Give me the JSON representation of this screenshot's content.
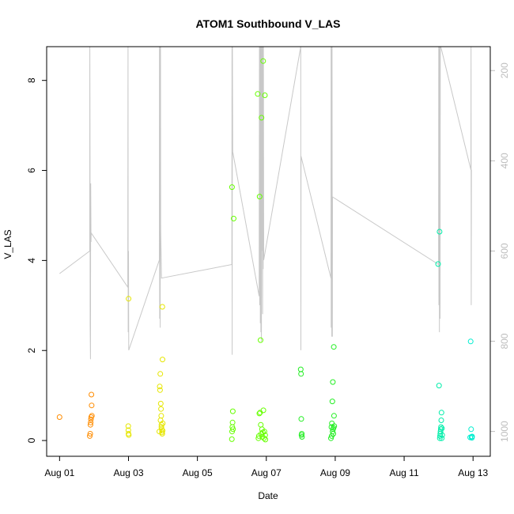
{
  "chart_data": {
    "type": "scatter",
    "title": "ATOM1 Southbound V_LAS",
    "xlabel": "Date",
    "ylabel": "V_LAS",
    "y2label": "",
    "xlim": [
      "2019-07-31T15:00",
      "2019-08-13T12:00"
    ],
    "ylim": [
      -0.35,
      8.75
    ],
    "y2lim": [
      1055,
      147
    ],
    "y2_reversed": true,
    "x_ticks": [
      {
        "date": "2019-08-01",
        "label": "Aug 01"
      },
      {
        "date": "2019-08-03",
        "label": "Aug 03"
      },
      {
        "date": "2019-08-05",
        "label": "Aug 05"
      },
      {
        "date": "2019-08-07",
        "label": "Aug 07"
      },
      {
        "date": "2019-08-09",
        "label": "Aug 09"
      },
      {
        "date": "2019-08-11",
        "label": "Aug 11"
      },
      {
        "date": "2019-08-13",
        "label": "Aug 13"
      }
    ],
    "y_ticks": [
      0,
      2,
      4,
      6,
      8
    ],
    "y2_ticks": [
      200,
      400,
      600,
      800,
      1000
    ],
    "grid": false,
    "legend": "none",
    "series": [
      {
        "color": "#FF8C00",
        "points": [
          [
            "2019-08-01T00:00",
            0.52
          ],
          [
            "2019-08-01T21:00",
            0.1
          ],
          [
            "2019-08-01T21:20",
            0.15
          ],
          [
            "2019-08-01T21:30",
            0.35
          ],
          [
            "2019-08-01T21:50",
            0.47
          ],
          [
            "2019-08-01T22:00",
            0.52
          ],
          [
            "2019-08-01T22:10",
            1.02
          ],
          [
            "2019-08-01T22:20",
            0.78
          ],
          [
            "2019-08-01T22:30",
            0.55
          ],
          [
            "2019-08-01T21:40",
            0.4
          ]
        ]
      },
      {
        "color": "#E6E600",
        "points": [
          [
            "2019-08-02T23:50",
            0.32
          ],
          [
            "2019-08-02T23:55",
            0.23
          ],
          [
            "2019-08-03T00:00",
            0.15
          ],
          [
            "2019-08-03T00:10",
            0.12
          ],
          [
            "2019-08-03T00:05",
            3.15
          ],
          [
            "2019-08-03T21:30",
            0.2
          ],
          [
            "2019-08-03T21:45",
            1.2
          ],
          [
            "2019-08-03T22:00",
            1.12
          ],
          [
            "2019-08-03T22:10",
            1.48
          ],
          [
            "2019-08-03T22:20",
            0.45
          ],
          [
            "2019-08-03T22:30",
            0.82
          ],
          [
            "2019-08-03T22:40",
            0.7
          ],
          [
            "2019-08-03T22:50",
            0.55
          ],
          [
            "2019-08-03T23:00",
            0.35
          ],
          [
            "2019-08-03T23:10",
            0.25
          ],
          [
            "2019-08-03T23:20",
            0.18
          ],
          [
            "2019-08-03T23:30",
            0.15
          ],
          [
            "2019-08-03T23:40",
            1.8
          ],
          [
            "2019-08-03T23:35",
            2.97
          ],
          [
            "2019-08-03T23:45",
            0.22
          ],
          [
            "2019-08-03T23:50",
            0.38
          ],
          [
            "2019-08-03T22:55",
            0.3
          ]
        ]
      },
      {
        "color": "#66FF00",
        "points": [
          [
            "2019-08-06T00:00",
            0.03
          ],
          [
            "2019-08-06T00:10",
            0.2
          ],
          [
            "2019-08-06T00:20",
            0.3
          ],
          [
            "2019-08-06T00:30",
            0.4
          ],
          [
            "2019-08-06T00:40",
            0.65
          ],
          [
            "2019-08-06T00:50",
            0.25
          ],
          [
            "2019-08-06T00:05",
            5.63
          ],
          [
            "2019-08-06T01:15",
            4.93
          ],
          [
            "2019-08-06T18:00",
            7.7
          ],
          [
            "2019-08-06T19:20",
            5.42
          ],
          [
            "2019-08-06T20:40",
            7.17
          ],
          [
            "2019-08-06T21:50",
            8.43
          ],
          [
            "2019-08-06T23:00",
            7.67
          ],
          [
            "2019-08-06T20:00",
            2.23
          ],
          [
            "2019-08-06T18:30",
            0.05
          ],
          [
            "2019-08-06T18:50",
            0.1
          ],
          [
            "2019-08-06T19:10",
            0.6
          ],
          [
            "2019-08-06T19:40",
            0.62
          ],
          [
            "2019-08-06T20:10",
            0.35
          ],
          [
            "2019-08-06T20:30",
            0.15
          ],
          [
            "2019-08-06T21:00",
            0.25
          ],
          [
            "2019-08-06T21:20",
            0.08
          ],
          [
            "2019-08-06T21:40",
            0.18
          ],
          [
            "2019-08-06T22:00",
            0.67
          ],
          [
            "2019-08-06T22:20",
            0.05
          ],
          [
            "2019-08-06T22:40",
            0.2
          ],
          [
            "2019-08-06T23:10",
            0.12
          ],
          [
            "2019-08-06T23:20",
            0.02
          ]
        ]
      },
      {
        "color": "#22EE22",
        "points": [
          [
            "2019-08-08T00:00",
            1.58
          ],
          [
            "2019-08-08T00:10",
            1.48
          ],
          [
            "2019-08-08T00:20",
            0.48
          ],
          [
            "2019-08-08T00:30",
            0.12
          ],
          [
            "2019-08-08T00:40",
            0.15
          ],
          [
            "2019-08-08T00:50",
            0.08
          ],
          [
            "2019-08-08T21:00",
            0.05
          ],
          [
            "2019-08-08T21:20",
            0.3
          ],
          [
            "2019-08-08T21:40",
            0.38
          ],
          [
            "2019-08-08T22:00",
            0.87
          ],
          [
            "2019-08-08T22:10",
            0.2
          ],
          [
            "2019-08-08T22:20",
            1.3
          ],
          [
            "2019-08-08T22:30",
            0.25
          ],
          [
            "2019-08-08T22:40",
            0.15
          ],
          [
            "2019-08-08T23:00",
            2.08
          ],
          [
            "2019-08-08T23:10",
            0.55
          ],
          [
            "2019-08-08T23:20",
            0.32
          ],
          [
            "2019-08-08T21:30",
            0.1
          ],
          [
            "2019-08-08T22:50",
            0.28
          ]
        ]
      },
      {
        "color": "#00EEAA",
        "points": [
          [
            "2019-08-11T23:40",
            3.92
          ],
          [
            "2019-08-12T00:20",
            1.22
          ],
          [
            "2019-08-12T00:40",
            4.64
          ],
          [
            "2019-08-12T00:50",
            0.05
          ],
          [
            "2019-08-12T01:00",
            0.1
          ],
          [
            "2019-08-12T01:10",
            0.15
          ],
          [
            "2019-08-12T01:20",
            0.2
          ],
          [
            "2019-08-12T01:30",
            0.25
          ],
          [
            "2019-08-12T01:40",
            0.3
          ],
          [
            "2019-08-12T01:50",
            0.45
          ],
          [
            "2019-08-12T02:00",
            0.62
          ],
          [
            "2019-08-12T02:10",
            0.05
          ],
          [
            "2019-08-12T02:20",
            0.27
          ],
          [
            "2019-08-12T02:30",
            0.12
          ]
        ]
      },
      {
        "color": "#00EED0",
        "points": [
          [
            "2019-08-12T22:00",
            0.07
          ],
          [
            "2019-08-12T22:20",
            2.2
          ],
          [
            "2019-08-12T22:40",
            0.25
          ],
          [
            "2019-08-12T23:00",
            0.08
          ],
          [
            "2019-08-12T23:10",
            0.06
          ],
          [
            "2019-08-12T23:20",
            0.09
          ]
        ]
      }
    ],
    "secondary_line": {
      "color": "#c8c8c8",
      "axis": "right",
      "points": [
        [
          "2019-08-01T00:00",
          650
        ],
        [
          "2019-08-01T21:00",
          600
        ],
        [
          "2019-08-01T21:06",
          147
        ],
        [
          "2019-08-01T21:12",
          320
        ],
        [
          "2019-08-01T21:18",
          760
        ],
        [
          "2019-08-01T21:30",
          840
        ],
        [
          "2019-08-01T21:42",
          450
        ],
        [
          "2019-08-01T21:54",
          580
        ],
        [
          "2019-08-01T22:00",
          560
        ],
        [
          "2019-08-02T23:30",
          680
        ],
        [
          "2019-08-02T23:42",
          147
        ],
        [
          "2019-08-02T23:48",
          780
        ],
        [
          "2019-08-03T00:00",
          600
        ],
        [
          "2019-08-03T00:10",
          820
        ],
        [
          "2019-08-03T21:30",
          620
        ],
        [
          "2019-08-03T21:36",
          147
        ],
        [
          "2019-08-03T21:42",
          750
        ],
        [
          "2019-08-03T21:54",
          147
        ],
        [
          "2019-08-03T22:06",
          770
        ],
        [
          "2019-08-03T22:18",
          147
        ],
        [
          "2019-08-03T22:24",
          550
        ],
        [
          "2019-08-03T23:00",
          660
        ],
        [
          "2019-08-06T00:00",
          630
        ],
        [
          "2019-08-06T00:06",
          147
        ],
        [
          "2019-08-06T00:12",
          830
        ],
        [
          "2019-08-06T00:24",
          147
        ],
        [
          "2019-08-06T00:36",
          380
        ],
        [
          "2019-08-06T19:00",
          700
        ],
        [
          "2019-08-06T19:12",
          147
        ],
        [
          "2019-08-06T19:24",
          720
        ],
        [
          "2019-08-06T19:36",
          147
        ],
        [
          "2019-08-06T19:48",
          760
        ],
        [
          "2019-08-06T20:00",
          147
        ],
        [
          "2019-08-06T20:12",
          780
        ],
        [
          "2019-08-06T20:24",
          147
        ],
        [
          "2019-08-06T20:36",
          800
        ],
        [
          "2019-08-06T20:48",
          147
        ],
        [
          "2019-08-06T21:00",
          600
        ],
        [
          "2019-08-06T21:12",
          147
        ],
        [
          "2019-08-06T21:24",
          740
        ],
        [
          "2019-08-06T21:36",
          147
        ],
        [
          "2019-08-06T21:48",
          640
        ],
        [
          "2019-08-06T22:00",
          147
        ],
        [
          "2019-08-06T22:12",
          620
        ],
        [
          "2019-08-08T00:00",
          147
        ],
        [
          "2019-08-08T00:06",
          820
        ],
        [
          "2019-08-08T00:12",
          390
        ],
        [
          "2019-08-08T21:00",
          660
        ],
        [
          "2019-08-08T21:06",
          147
        ],
        [
          "2019-08-08T21:12",
          770
        ],
        [
          "2019-08-08T21:24",
          147
        ],
        [
          "2019-08-08T21:36",
          790
        ],
        [
          "2019-08-08T21:48",
          147
        ],
        [
          "2019-08-08T22:00",
          790
        ],
        [
          "2019-08-08T22:06",
          480
        ],
        [
          "2019-08-12T00:00",
          630
        ],
        [
          "2019-08-12T00:06",
          147
        ],
        [
          "2019-08-12T00:12",
          720
        ],
        [
          "2019-08-12T00:24",
          147
        ],
        [
          "2019-08-12T00:36",
          780
        ],
        [
          "2019-08-12T00:48",
          147
        ],
        [
          "2019-08-12T01:00",
          750
        ],
        [
          "2019-08-12T01:12",
          147
        ],
        [
          "2019-08-12T01:30",
          147
        ],
        [
          "2019-08-12T22:30",
          420
        ],
        [
          "2019-08-12T22:36",
          147
        ],
        [
          "2019-08-12T22:42",
          720
        ],
        [
          "2019-08-12T22:54",
          420
        ]
      ]
    }
  }
}
